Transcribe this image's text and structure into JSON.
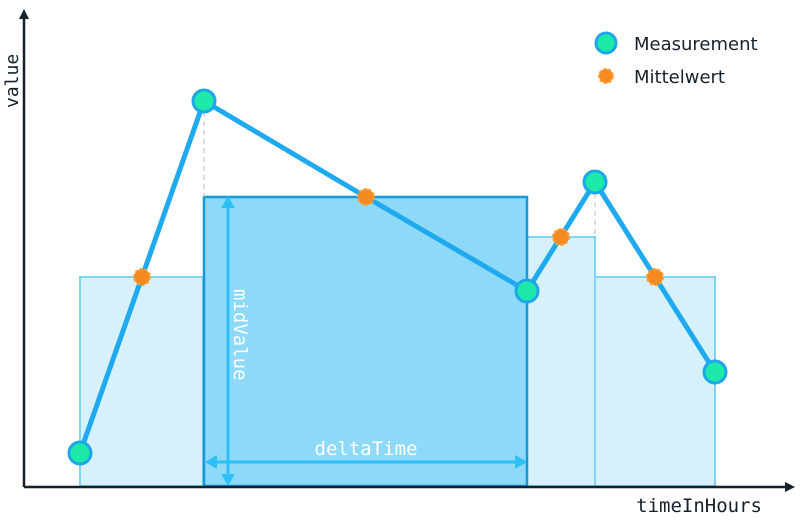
{
  "axes": {
    "x_label": "timeInHours",
    "y_label": "value"
  },
  "legend": {
    "measurement_label": "Measurement",
    "mittelwert_label": "Mittelwert"
  },
  "annotations": {
    "mid_value_label": "midValue",
    "delta_time_label": "deltaTime"
  },
  "colors": {
    "measurement_fill": "#1de9a8",
    "measurement_stroke": "#1ea7e8",
    "mittelwert_fill": "#f58a1f",
    "line": "#1faaf0",
    "bar_light": "#d6f1fc",
    "bar_highlight": "#8ed9f8",
    "bar_stroke": "#7fd3f5"
  }
}
